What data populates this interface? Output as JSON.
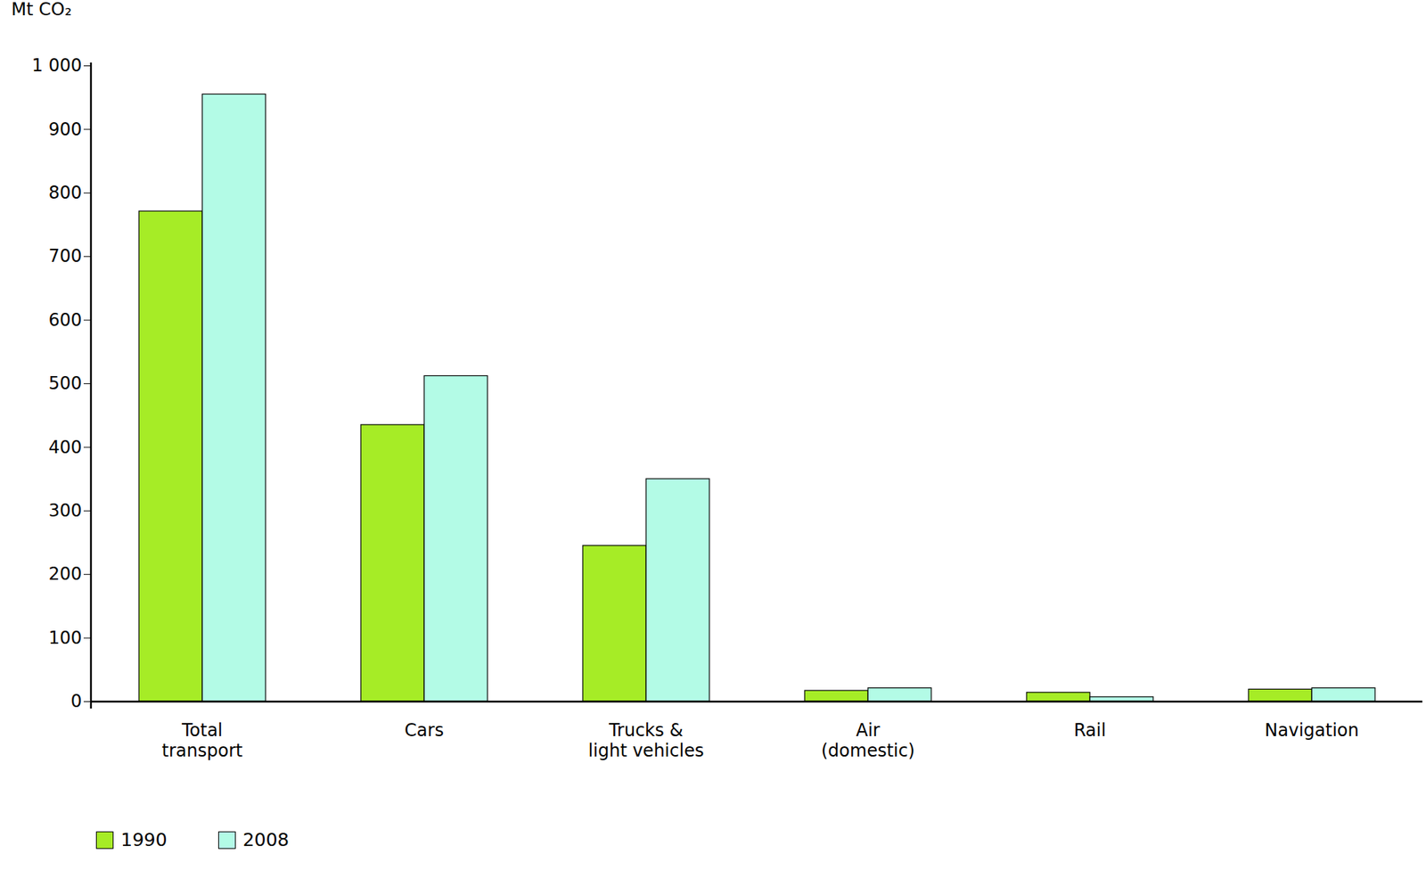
{
  "chart_data": {
    "type": "bar",
    "y_label": "Mt CO₂",
    "categories": [
      "Total\ntransport",
      "Cars",
      "Trucks &\nlight vehicles",
      "Air\n(domestic)",
      "Rail",
      "Navigation"
    ],
    "series": [
      {
        "name": "1990",
        "color": "#a6ec26",
        "values": [
          771,
          435,
          245,
          17,
          14,
          19
        ]
      },
      {
        "name": "2008",
        "color": "#b3fbe6",
        "values": [
          955,
          512,
          350,
          21,
          7,
          21
        ]
      }
    ],
    "ylim": [
      0,
      1000
    ],
    "yticks": [
      0,
      100,
      200,
      300,
      400,
      500,
      600,
      700,
      800,
      900,
      {
        "value": 1000,
        "label": "1 000"
      }
    ],
    "grid": false,
    "legend": "bottom"
  }
}
